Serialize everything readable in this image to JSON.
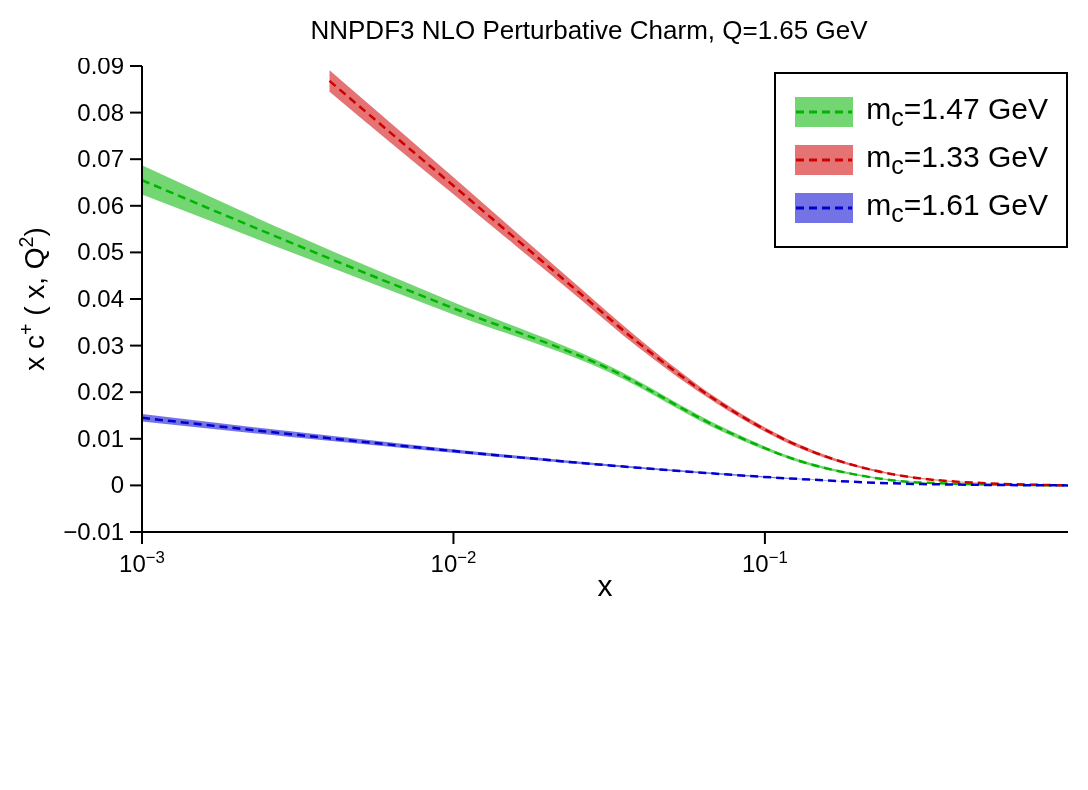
{
  "chart_data": {
    "type": "line",
    "title": "NNPDF3 NLO Perturbative Charm, Q=1.65 GeV",
    "xlabel": "x",
    "ylabel": "x c$^{+}$ ( x, Q$^{2}$)",
    "log": "x",
    "xlim": [
      0.001,
      0.94
    ],
    "xticks": [
      {
        "value": 0.001,
        "label": "10$^{−3}$"
      },
      {
        "value": 0.01,
        "label": "10$^{−2}$"
      },
      {
        "value": 0.1,
        "label": "10$^{−1}$"
      }
    ],
    "ylim": [
      -0.01,
      0.09
    ],
    "yticks": [
      -0.01,
      0,
      0.01,
      0.02,
      0.03,
      0.04,
      0.05,
      0.06,
      0.07,
      0.08,
      0.09
    ],
    "legend": "top right",
    "line_style": "dashed",
    "marker": "none",
    "series": [
      {
        "name": "m$_{c}$=1.47 GeV",
        "color": "#00b400",
        "x": [
          0.001,
          0.00316,
          0.01,
          0.0316,
          0.0748,
          0.127,
          0.2,
          0.316,
          0.94
        ],
        "values": [
          0.0655,
          0.0515,
          0.038,
          0.025,
          0.0117,
          0.0054,
          0.0022,
          0.0006,
          0
        ],
        "lower": [
          0.0624,
          0.0495,
          0.0367,
          0.0243,
          0.0112,
          0.0051,
          0.002,
          0.0005,
          0
        ],
        "upper": [
          0.0687,
          0.0535,
          0.0393,
          0.0257,
          0.0122,
          0.0057,
          0.0024,
          0.0007,
          0
        ]
      },
      {
        "name": "m$_{c}$=1.33 GeV",
        "color": "#d00000",
        "x": [
          0.004,
          0.0063,
          0.01,
          0.0158,
          0.0251,
          0.0389,
          0.0706,
          0.127,
          0.218,
          0.392,
          0.94
        ],
        "values": [
          0.0868,
          0.0756,
          0.0643,
          0.053,
          0.0416,
          0.0308,
          0.018,
          0.0086,
          0.0034,
          0.0009,
          0
        ],
        "lower": [
          0.0845,
          0.0735,
          0.0625,
          0.0515,
          0.0404,
          0.0298,
          0.0174,
          0.0082,
          0.0032,
          0.0008,
          0
        ],
        "upper": [
          0.0891,
          0.0777,
          0.0661,
          0.0545,
          0.0428,
          0.0318,
          0.0186,
          0.009,
          0.0036,
          0.001,
          0
        ]
      },
      {
        "name": "m$_{c}$=1.61 GeV",
        "color": "#0000d0",
        "x": [
          0.001,
          0.003,
          0.00865,
          0.0389,
          0.127,
          0.31,
          0.94
        ],
        "values": [
          0.0145,
          0.011,
          0.0078,
          0.0038,
          0.0014,
          0.0003,
          0
        ],
        "lower": [
          0.0137,
          0.0104,
          0.0074,
          0.0036,
          0.0013,
          0.0003,
          0
        ],
        "upper": [
          0.0153,
          0.0116,
          0.0082,
          0.004,
          0.0015,
          0.0003,
          0
        ]
      }
    ]
  }
}
